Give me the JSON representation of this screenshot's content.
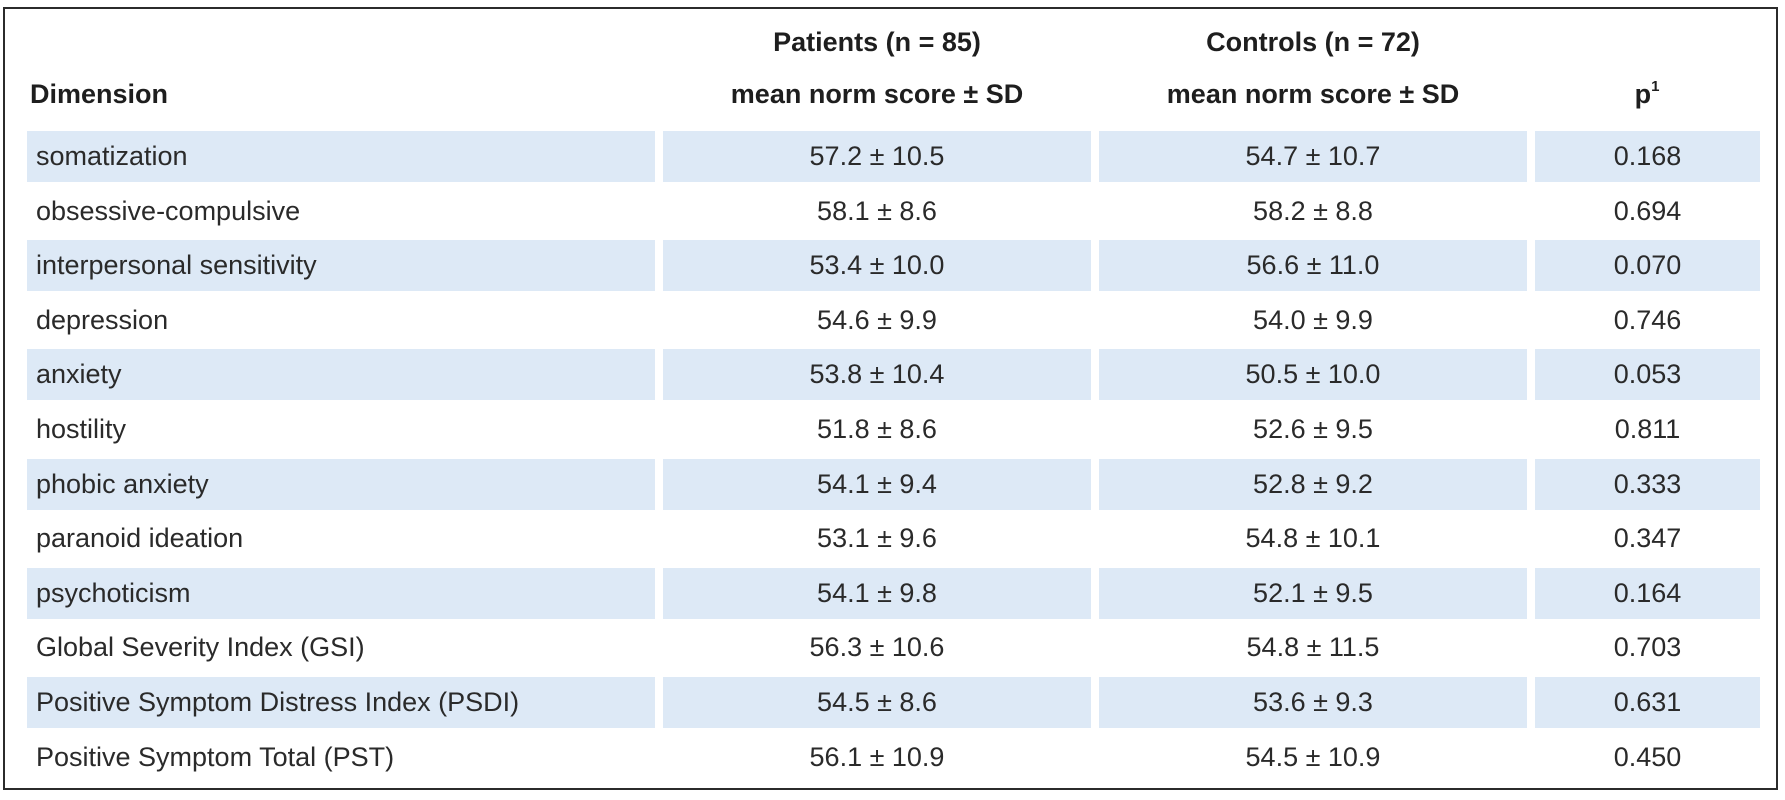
{
  "table": {
    "headers": {
      "dimension": "Dimension",
      "patients_group": "Patients (n = 85)",
      "patients_sub": "mean norm score ± SD",
      "controls_group": "Controls (n = 72)",
      "controls_sub": "mean norm score ± SD",
      "p": "p",
      "p_sup": "1"
    },
    "rows": [
      {
        "dimension": "somatization",
        "patients": "57.2 ± 10.5",
        "controls": "54.7 ± 10.7",
        "p": "0.168"
      },
      {
        "dimension": "obsessive-compulsive",
        "patients": "58.1 ± 8.6",
        "controls": "58.2 ± 8.8",
        "p": "0.694"
      },
      {
        "dimension": "interpersonal sensitivity",
        "patients": "53.4 ± 10.0",
        "controls": "56.6 ± 11.0",
        "p": "0.070"
      },
      {
        "dimension": "depression",
        "patients": "54.6 ± 9.9",
        "controls": "54.0 ± 9.9",
        "p": "0.746"
      },
      {
        "dimension": "anxiety",
        "patients": "53.8 ± 10.4",
        "controls": "50.5 ± 10.0",
        "p": "0.053"
      },
      {
        "dimension": "hostility",
        "patients": "51.8 ± 8.6",
        "controls": "52.6 ± 9.5",
        "p": "0.811"
      },
      {
        "dimension": "phobic anxiety",
        "patients": "54.1 ± 9.4",
        "controls": "52.8 ± 9.2",
        "p": "0.333"
      },
      {
        "dimension": "paranoid ideation",
        "patients": "53.1 ± 9.6",
        "controls": "54.8 ± 10.1",
        "p": "0.347"
      },
      {
        "dimension": "psychoticism",
        "patients": "54.1 ± 9.8",
        "controls": "52.1 ± 9.5",
        "p": "0.164"
      },
      {
        "dimension": "Global Severity Index (GSI)",
        "patients": "56.3 ± 10.6",
        "controls": "54.8 ± 11.5",
        "p": "0.703"
      },
      {
        "dimension": "Positive Symptom Distress Index (PSDI)",
        "patients": "54.5 ± 8.6",
        "controls": "53.6 ± 9.3",
        "p": "0.631"
      },
      {
        "dimension": "Positive Symptom Total (PST)",
        "patients": "56.1 ± 10.9",
        "controls": "54.5 ± 10.9",
        "p": "0.450"
      }
    ]
  },
  "colors": {
    "row_shade": "#dde9f6",
    "border": "#2b2b2b"
  }
}
